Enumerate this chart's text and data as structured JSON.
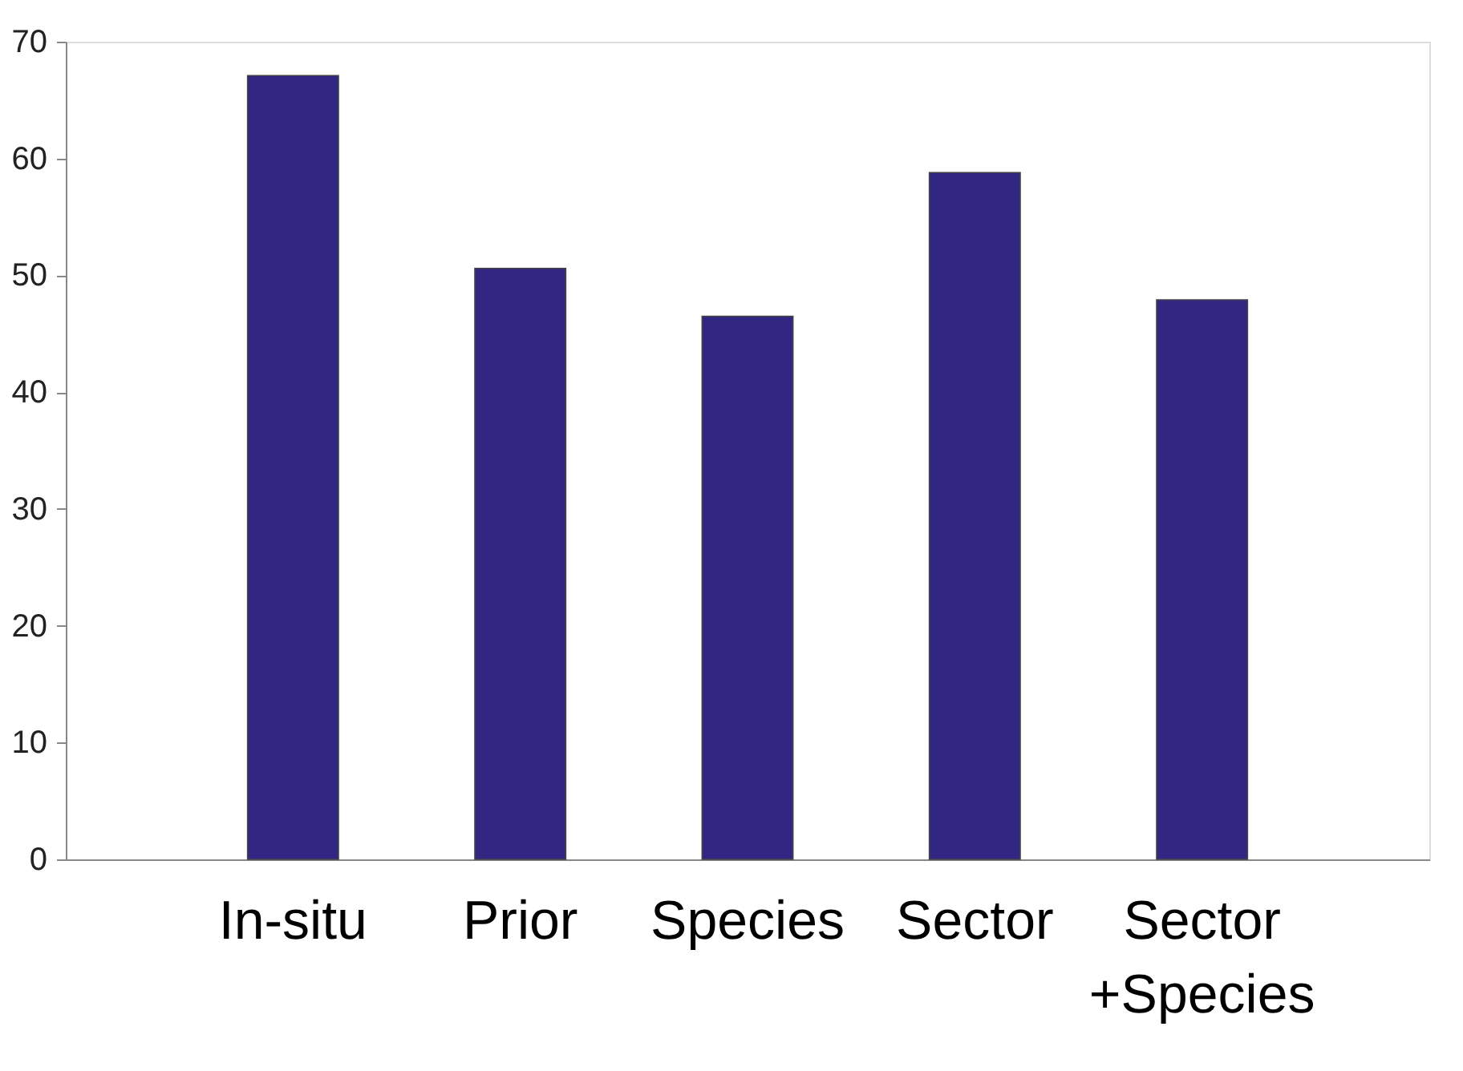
{
  "chart_data": {
    "type": "bar",
    "categories": [
      "In-situ",
      "Prior",
      "Species",
      "Sector",
      "Sector +Species"
    ],
    "values": [
      67.1,
      50.6,
      46.5,
      58.8,
      47.9
    ],
    "color": "#312783",
    "ylim": [
      0,
      70
    ],
    "yticks": [
      0,
      10,
      20,
      30,
      40,
      50,
      60,
      70
    ],
    "grid": false
  }
}
